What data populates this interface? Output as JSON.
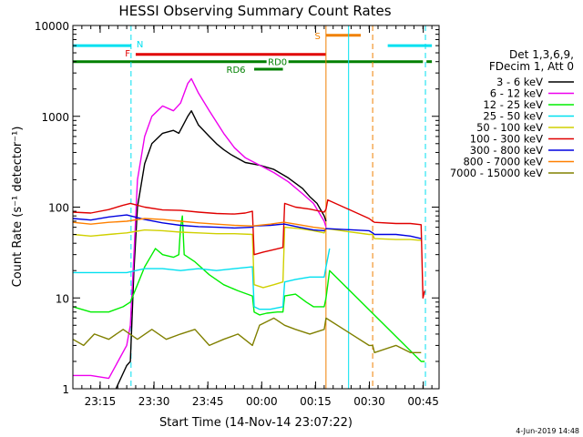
{
  "chart_data": {
    "type": "line",
    "title": "HESSI Observing Summary Count Rates",
    "xlabel": "Start Time (14-Nov-14 23:07:22)",
    "ylabel": "Count Rate (s⁻¹ detector⁻¹)",
    "yscale": "log",
    "ylim": [
      1,
      10000
    ],
    "xlim_minutes": [
      0,
      102
    ],
    "x_tick_labels": [
      "23:15",
      "23:30",
      "23:45",
      "00:00",
      "00:15",
      "00:30",
      "00:45"
    ],
    "x_tick_minutes": [
      7.6,
      22.6,
      37.6,
      52.6,
      67.6,
      82.6,
      97.6
    ],
    "y_tick_labels": [
      "1",
      "10",
      "100",
      "1000",
      "10000"
    ],
    "y_tick_values": [
      1,
      10,
      100,
      1000,
      10000
    ],
    "legend_header": [
      "Det 1,3,6,9,",
      "FDecim 1, Att 0"
    ],
    "legend_placement": "right",
    "footer_date": "4-Jun-2019 14:48",
    "colors": {
      "axis": "#000000",
      "flag_N": "#00e0f0",
      "flag_F": "#e00000",
      "flag_S": "#f08000",
      "flag_RD": "#008000"
    },
    "flags": [
      {
        "label": "N",
        "color": "#00e0f0",
        "level": 6000,
        "segments": [
          [
            0,
            16.2
          ],
          [
            87.7,
            100
          ]
        ]
      },
      {
        "label": "F",
        "color": "#e00000",
        "level": 4800,
        "segments": [
          [
            17.5,
            70.5
          ]
        ]
      },
      {
        "label": "S",
        "color": "#f08000",
        "level": 7800,
        "segments": [
          [
            70.5,
            80.2
          ]
        ]
      },
      {
        "label": "RD0",
        "color": "#008000",
        "level": 4000,
        "segments": [
          [
            0,
            97.5
          ],
          [
            98.5,
            100
          ]
        ]
      },
      {
        "label": "RD6",
        "color": "#008000",
        "level": 3300,
        "segments": [
          [
            50.5,
            58.5
          ]
        ]
      }
    ],
    "vertical_markers": [
      {
        "minute": 16.2,
        "color": "#00e0f0",
        "style": "dashed"
      },
      {
        "minute": 70.5,
        "color": "#f08000",
        "style": "solid"
      },
      {
        "minute": 76.8,
        "color": "#00e0f0",
        "style": "solid"
      },
      {
        "minute": 83.5,
        "color": "#f08000",
        "style": "dashed"
      },
      {
        "minute": 98.2,
        "color": "#00e0f0",
        "style": "dashed"
      }
    ],
    "series": [
      {
        "name": "3 - 6 keV",
        "color": "#000000",
        "points": [
          [
            12,
            1
          ],
          [
            15,
            1.8
          ],
          [
            16,
            2
          ],
          [
            17,
            20
          ],
          [
            18,
            100
          ],
          [
            20,
            300
          ],
          [
            22,
            500
          ],
          [
            25,
            650
          ],
          [
            28,
            700
          ],
          [
            29.5,
            650
          ],
          [
            32,
            1000
          ],
          [
            33,
            1150
          ],
          [
            35,
            800
          ],
          [
            38,
            600
          ],
          [
            40,
            500
          ],
          [
            42,
            430
          ],
          [
            44,
            380
          ],
          [
            48,
            310
          ],
          [
            52,
            290
          ],
          [
            56,
            260
          ],
          [
            60,
            210
          ],
          [
            64,
            160
          ],
          [
            66,
            130
          ],
          [
            68,
            110
          ],
          [
            70,
            80
          ],
          [
            70.5,
            70
          ]
        ]
      },
      {
        "name": "6 - 12 keV",
        "color": "#ee00ee",
        "points": [
          [
            0,
            1.4
          ],
          [
            5,
            1.4
          ],
          [
            10,
            1.3
          ],
          [
            15,
            3
          ],
          [
            16,
            5
          ],
          [
            17,
            30
          ],
          [
            18,
            200
          ],
          [
            20,
            600
          ],
          [
            22,
            1000
          ],
          [
            25,
            1300
          ],
          [
            28,
            1150
          ],
          [
            30,
            1400
          ],
          [
            32,
            2300
          ],
          [
            33,
            2600
          ],
          [
            35,
            1800
          ],
          [
            38,
            1150
          ],
          [
            42,
            650
          ],
          [
            45,
            450
          ],
          [
            48,
            350
          ],
          [
            52,
            290
          ],
          [
            56,
            240
          ],
          [
            60,
            190
          ],
          [
            64,
            140
          ],
          [
            67,
            110
          ],
          [
            70,
            70
          ],
          [
            70.5,
            60
          ]
        ]
      },
      {
        "name": "12 - 25 keV",
        "color": "#00ee00",
        "points": [
          [
            0,
            8
          ],
          [
            5,
            7
          ],
          [
            10,
            7
          ],
          [
            14,
            8
          ],
          [
            16,
            9
          ],
          [
            18,
            14
          ],
          [
            20,
            22
          ],
          [
            22,
            30
          ],
          [
            23,
            35
          ],
          [
            25,
            30
          ],
          [
            28,
            28
          ],
          [
            29.5,
            30
          ],
          [
            30,
            60
          ],
          [
            30.5,
            80
          ],
          [
            31,
            30
          ],
          [
            34,
            25
          ],
          [
            38,
            18
          ],
          [
            42,
            14
          ],
          [
            46,
            12
          ],
          [
            50,
            10.5
          ],
          [
            50.5,
            7
          ],
          [
            52,
            6.5
          ],
          [
            54,
            6.8
          ],
          [
            57,
            7
          ],
          [
            58.5,
            7
          ],
          [
            59,
            10.5
          ],
          [
            62,
            11
          ],
          [
            65,
            9
          ],
          [
            67,
            8
          ],
          [
            70,
            8
          ],
          [
            70.5,
            10
          ],
          [
            71.5,
            20
          ],
          [
            97,
            2
          ],
          [
            98,
            2
          ]
        ]
      },
      {
        "name": "25 - 50 keV",
        "color": "#00e0f0",
        "points": [
          [
            0,
            19
          ],
          [
            5,
            19
          ],
          [
            10,
            19
          ],
          [
            15,
            19
          ],
          [
            20,
            21
          ],
          [
            25,
            21
          ],
          [
            30,
            20
          ],
          [
            35,
            21
          ],
          [
            40,
            20
          ],
          [
            45,
            21
          ],
          [
            50,
            22
          ],
          [
            50.5,
            8
          ],
          [
            52,
            7.5
          ],
          [
            55,
            7.5
          ],
          [
            58.5,
            8
          ],
          [
            59,
            15
          ],
          [
            62,
            16
          ],
          [
            66,
            17
          ],
          [
            70,
            17
          ],
          [
            70.5,
            22
          ],
          [
            71.5,
            35
          ]
        ]
      },
      {
        "name": "50 - 100 keV",
        "color": "#d0d000",
        "points": [
          [
            0,
            50
          ],
          [
            5,
            48
          ],
          [
            10,
            50
          ],
          [
            15,
            52
          ],
          [
            20,
            56
          ],
          [
            25,
            55
          ],
          [
            30,
            53
          ],
          [
            35,
            52
          ],
          [
            40,
            51
          ],
          [
            45,
            51
          ],
          [
            50,
            50
          ],
          [
            50.5,
            14
          ],
          [
            53,
            13
          ],
          [
            56,
            14
          ],
          [
            58.5,
            15
          ],
          [
            59,
            60
          ],
          [
            63,
            58
          ],
          [
            67,
            55
          ],
          [
            70,
            52
          ],
          [
            70.5,
            58
          ],
          [
            82.5,
            50
          ],
          [
            83.5,
            50
          ],
          [
            84,
            45
          ],
          [
            90,
            44
          ],
          [
            94,
            44
          ],
          [
            97,
            43
          ]
        ]
      },
      {
        "name": "100 - 300 keV",
        "color": "#e00000",
        "points": [
          [
            0,
            88
          ],
          [
            5,
            86
          ],
          [
            10,
            94
          ],
          [
            14,
            105
          ],
          [
            16,
            110
          ],
          [
            20,
            100
          ],
          [
            25,
            93
          ],
          [
            30,
            92
          ],
          [
            35,
            88
          ],
          [
            40,
            85
          ],
          [
            45,
            84
          ],
          [
            48,
            86
          ],
          [
            50,
            90
          ],
          [
            50.5,
            30
          ],
          [
            53,
            32
          ],
          [
            56,
            34
          ],
          [
            58.5,
            36
          ],
          [
            59,
            110
          ],
          [
            62,
            100
          ],
          [
            66,
            95
          ],
          [
            70,
            88
          ],
          [
            70.5,
            95
          ],
          [
            71,
            120
          ],
          [
            82.5,
            75
          ],
          [
            83.5,
            70
          ],
          [
            84,
            68
          ],
          [
            90,
            66
          ],
          [
            94,
            66
          ],
          [
            97,
            64
          ],
          [
            97.5,
            10
          ],
          [
            98,
            12
          ]
        ]
      },
      {
        "name": "300 - 800 keV",
        "color": "#0000e0",
        "points": [
          [
            0,
            75
          ],
          [
            5,
            72
          ],
          [
            10,
            78
          ],
          [
            15,
            82
          ],
          [
            20,
            73
          ],
          [
            25,
            67
          ],
          [
            30,
            63
          ],
          [
            35,
            61
          ],
          [
            40,
            60
          ],
          [
            45,
            59
          ],
          [
            50,
            60
          ],
          [
            50.5,
            62
          ],
          [
            55,
            63
          ],
          [
            58.5,
            65
          ],
          [
            59,
            65
          ],
          [
            63,
            60
          ],
          [
            67,
            56
          ],
          [
            70,
            55
          ],
          [
            70.5,
            58
          ],
          [
            82.5,
            55
          ],
          [
            83.5,
            52
          ],
          [
            84,
            50
          ],
          [
            90,
            50
          ],
          [
            94,
            48
          ],
          [
            97,
            45
          ]
        ]
      },
      {
        "name": "800 - 7000 keV",
        "color": "#ff8000",
        "points": [
          [
            0,
            68
          ],
          [
            5,
            65
          ],
          [
            10,
            68
          ],
          [
            15,
            70
          ],
          [
            20,
            75
          ],
          [
            25,
            73
          ],
          [
            30,
            70
          ],
          [
            35,
            67
          ],
          [
            40,
            65
          ],
          [
            45,
            63
          ],
          [
            50,
            62
          ],
          [
            55,
            65
          ],
          [
            58.5,
            68
          ],
          [
            59,
            68
          ],
          [
            63,
            64
          ],
          [
            67,
            60
          ],
          [
            70,
            58
          ],
          [
            70.5,
            55
          ]
        ]
      },
      {
        "name": "7000 - 15000 keV",
        "color": "#808000",
        "points": [
          [
            0,
            3.5
          ],
          [
            3,
            3
          ],
          [
            6,
            4
          ],
          [
            10,
            3.5
          ],
          [
            14,
            4.5
          ],
          [
            18,
            3.5
          ],
          [
            22,
            4.5
          ],
          [
            26,
            3.5
          ],
          [
            30,
            4
          ],
          [
            34,
            4.5
          ],
          [
            38,
            3
          ],
          [
            42,
            3.5
          ],
          [
            46,
            4
          ],
          [
            50,
            3
          ],
          [
            52,
            5
          ],
          [
            56,
            6
          ],
          [
            59,
            5
          ],
          [
            62,
            4.5
          ],
          [
            66,
            4
          ],
          [
            70,
            4.5
          ],
          [
            70.5,
            6
          ],
          [
            82.5,
            3
          ],
          [
            83.5,
            3
          ],
          [
            84,
            2.5
          ],
          [
            90,
            3
          ],
          [
            94,
            2.5
          ],
          [
            97,
            2.5
          ]
        ]
      }
    ]
  }
}
